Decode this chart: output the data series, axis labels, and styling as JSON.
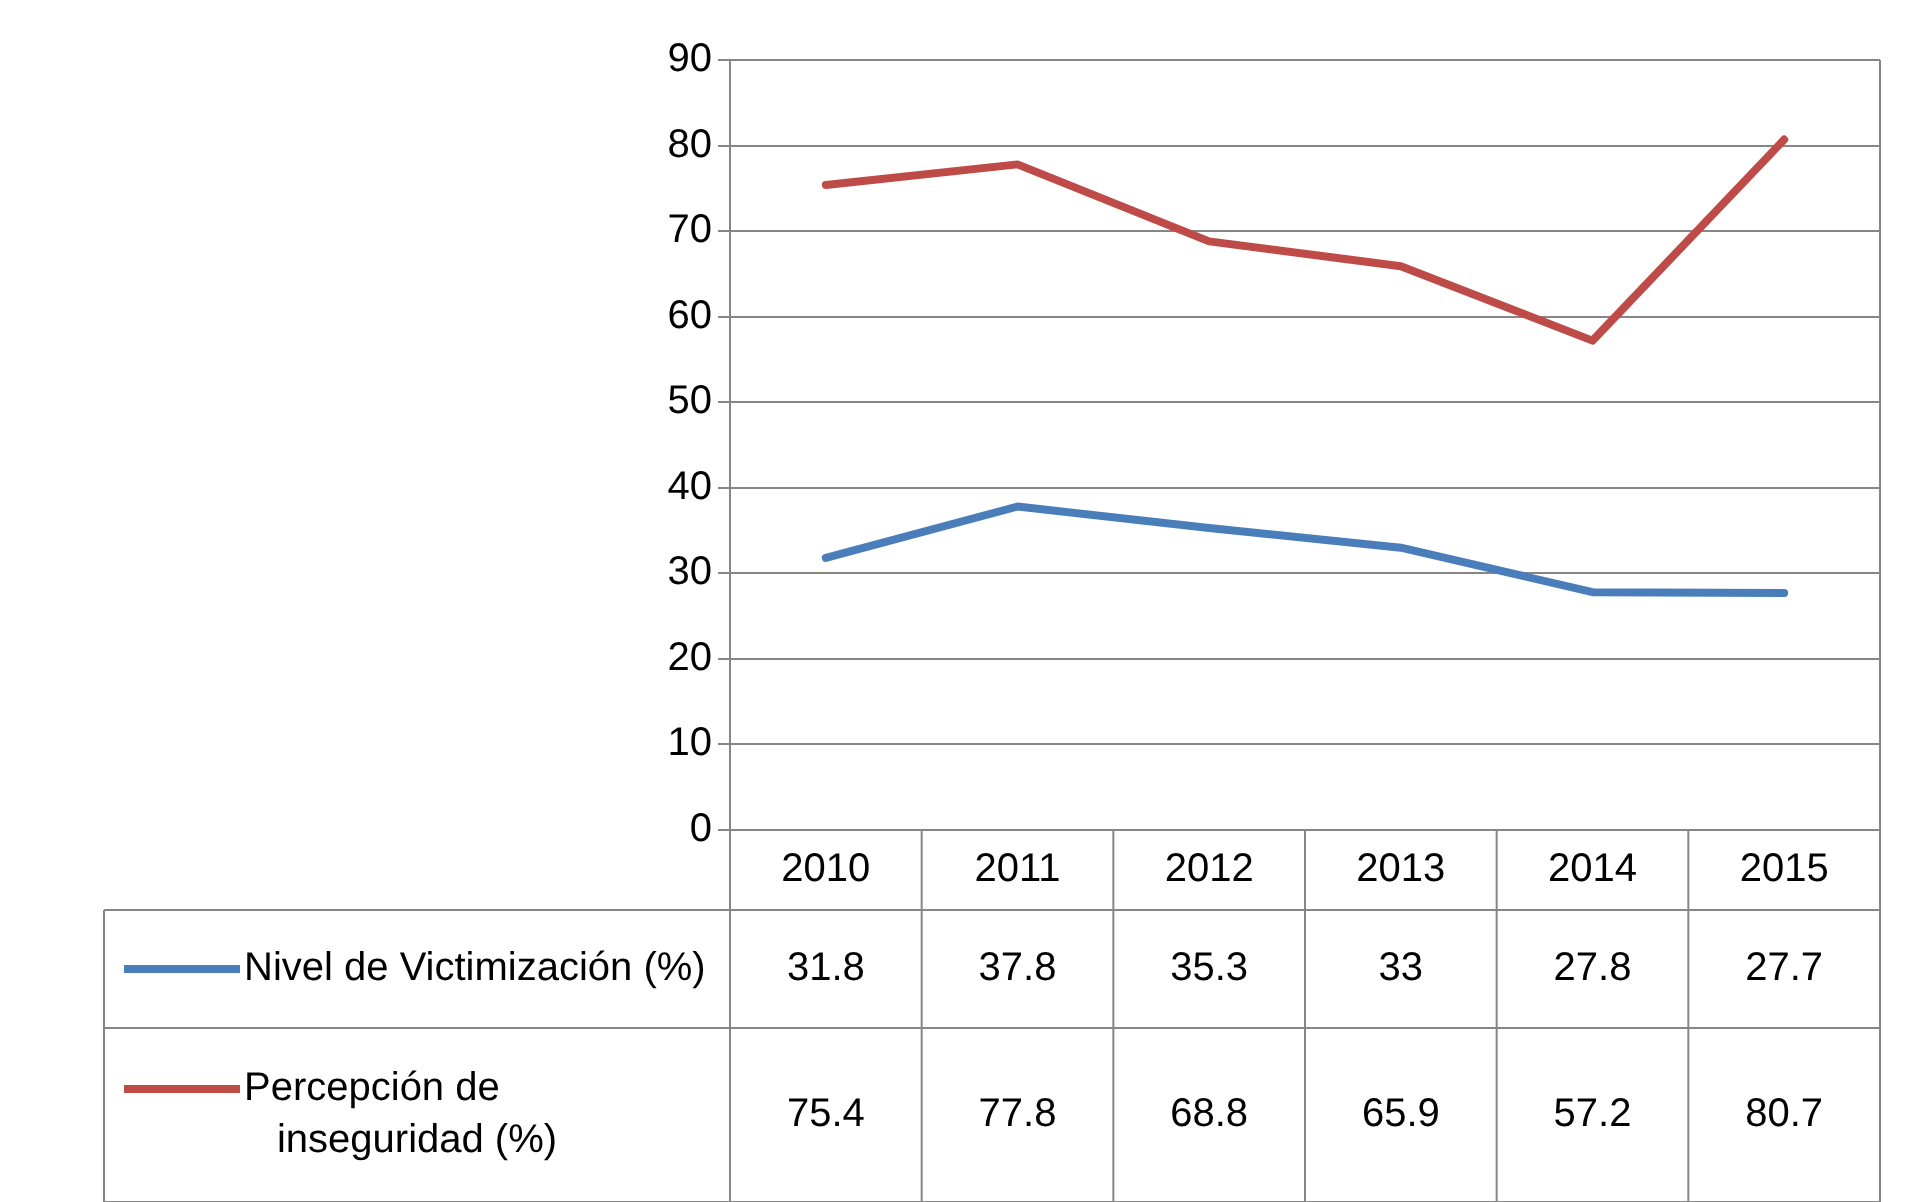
{
  "chart_data": {
    "type": "line",
    "categories": [
      "2010",
      "2011",
      "2012",
      "2013",
      "2014",
      "2015"
    ],
    "series": [
      {
        "name": "Nivel de Victimización (%)",
        "color": "#4a7ebb",
        "values": [
          31.8,
          37.8,
          35.3,
          33,
          27.8,
          27.7
        ]
      },
      {
        "name": "Percepción de inseguridad (%)",
        "color": "#be4b48",
        "values": [
          75.4,
          77.8,
          68.8,
          65.9,
          57.2,
          80.7
        ]
      }
    ],
    "ylim": [
      0,
      90
    ],
    "yticks": [
      0,
      10,
      20,
      30,
      40,
      50,
      60,
      70,
      80,
      90
    ],
    "grid": "y",
    "legend": "bottom",
    "data_labels": true,
    "marker": "none",
    "line_style": "solid"
  }
}
